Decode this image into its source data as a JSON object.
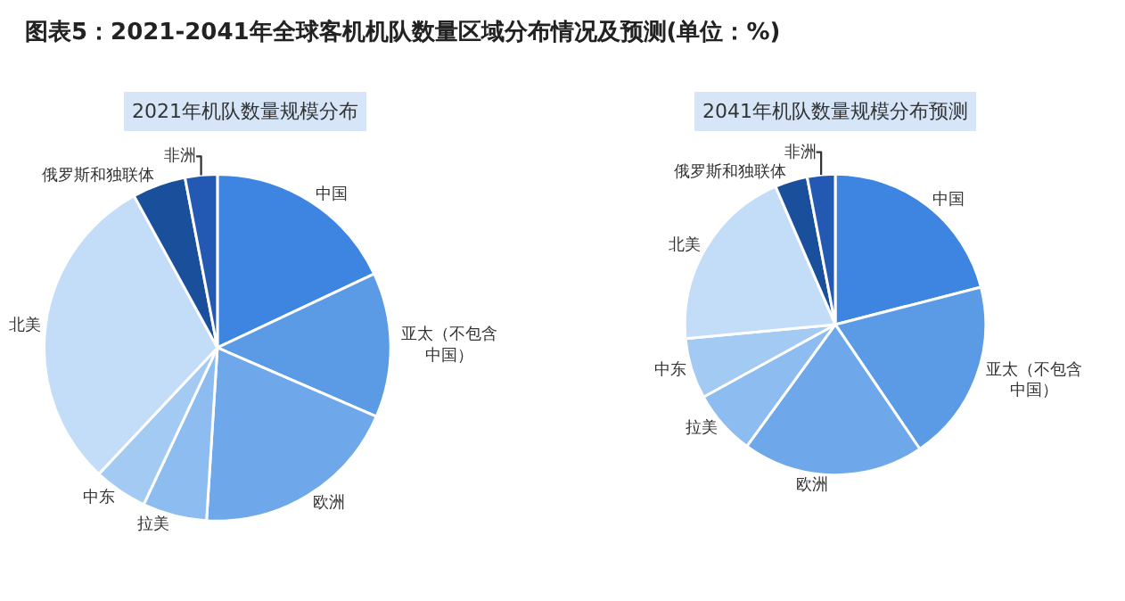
{
  "chart_data": [
    {
      "type": "pie",
      "title": "图表5：2021-2041年全球客机机队数量区域分布情况及预测(单位：%)",
      "subtitle": "2021年机队数量规模分布",
      "categories": [
        "中国",
        "亚太（不包含中国）",
        "欧洲",
        "拉美",
        "中东",
        "北美",
        "俄罗斯和独联体",
        "非洲"
      ],
      "values": [
        18,
        13.5,
        19.5,
        6,
        5,
        30,
        5,
        3
      ],
      "colors": [
        "#3d85e0",
        "#5b9be6",
        "#6fa8ea",
        "#8dbcf0",
        "#a3caf2",
        "#c3dcf7",
        "#1a4f9c",
        "#2459b3"
      ]
    },
    {
      "type": "pie",
      "subtitle": "2041年机队数量规模分布预测",
      "categories": [
        "中国",
        "亚太（不包含中国）",
        "欧洲",
        "拉美",
        "中东",
        "北美",
        "俄罗斯和独联体",
        "非洲"
      ],
      "values": [
        21,
        19.5,
        19.5,
        7,
        6.5,
        20,
        3.5,
        3
      ],
      "colors": [
        "#3d85e0",
        "#5b9be6",
        "#6fa8ea",
        "#8dbcf0",
        "#a3caf2",
        "#c3dcf7",
        "#1a4f9c",
        "#2459b3"
      ]
    }
  ]
}
